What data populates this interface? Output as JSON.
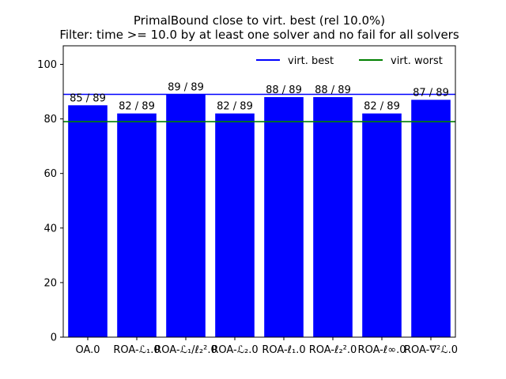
{
  "chart_data": {
    "type": "bar",
    "title": "PrimalBound close to virt. best (rel 10.0%)",
    "subtitle": "Filter: time >= 10.0 by at least one solver and no fail for all solvers",
    "xlabel": "",
    "ylabel": "",
    "categories": [
      "OA.0",
      "ROA-ℒ₁.0",
      "ROA-ℒ₁/ℓ₂².0",
      "ROA-ℒ₂.0",
      "ROA-ℓ₁.0",
      "ROA-ℓ₂².0",
      "ROA-ℓ∞.0",
      "ROA-∇²ℒ.0"
    ],
    "values": [
      85,
      82,
      89,
      82,
      88,
      88,
      82,
      87
    ],
    "bar_labels": [
      "85 / 89",
      "82 / 89",
      "89 / 89",
      "82 / 89",
      "88 / 89",
      "88 / 89",
      "82 / 89",
      "87 / 89"
    ],
    "ylim": [
      0,
      106.8
    ],
    "yticks": [
      0,
      20,
      40,
      60,
      80,
      100
    ],
    "bar_color": "#0000ff",
    "reference_lines": [
      {
        "name": "virt. best",
        "value": 89,
        "color": "#0000ff"
      },
      {
        "name": "virt. worst",
        "value": 79,
        "color": "#008000"
      }
    ],
    "legend_placement": "top-right",
    "grid": false
  }
}
